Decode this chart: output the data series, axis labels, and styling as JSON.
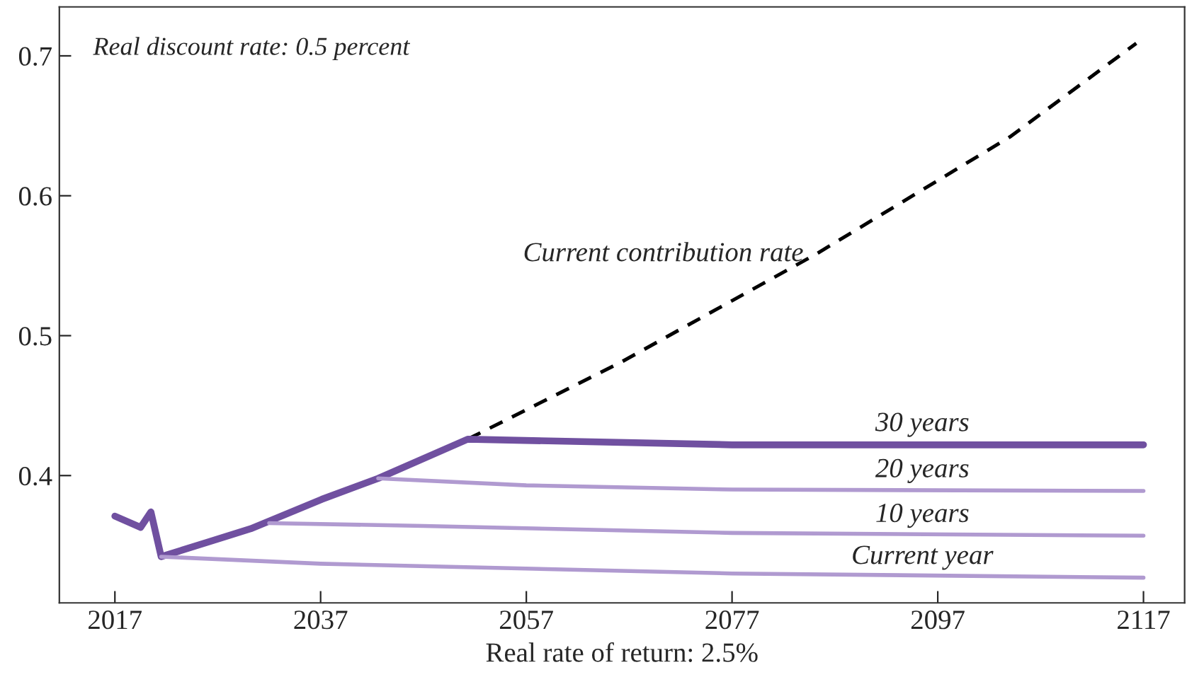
{
  "chart_data": {
    "type": "line",
    "xlabel": "Real rate of return: 2.5%",
    "annotations": [
      "Real discount rate: 0.5 percent"
    ],
    "xlim": [
      2011.6,
      2121
    ],
    "ylim": [
      0.309,
      0.735
    ],
    "xticks": [
      2017,
      2037,
      2057,
      2077,
      2097,
      2117
    ],
    "yticks": [
      0.4,
      0.5,
      0.6,
      0.7
    ],
    "grid": false,
    "legend": false,
    "series": [
      {
        "name": "Current contribution rate",
        "color": "#000000",
        "line_style": "dashed",
        "x": [
          2051.3,
          2066.2,
          2085.1,
          2104,
          2116.3
        ],
        "values": [
          0.426,
          0.481,
          0.558,
          0.642,
          0.709
        ]
      },
      {
        "name": "30 years",
        "color": "#7050a0",
        "x": [
          2017,
          2019.5,
          2020.5,
          2021.5,
          2030.2,
          2037.1,
          2042.6,
          2051.3,
          2077,
          2117
        ],
        "values": [
          0.371,
          0.363,
          0.374,
          0.342,
          0.362,
          0.383,
          0.398,
          0.426,
          0.422,
          0.422
        ]
      },
      {
        "name": "20 years",
        "color": "#b09ad0",
        "x": [
          2042.6,
          2057,
          2077,
          2117
        ],
        "values": [
          0.398,
          0.393,
          0.39,
          0.389
        ]
      },
      {
        "name": "10 years",
        "color": "#b09ad0",
        "x": [
          2032,
          2047,
          2077,
          2117
        ],
        "values": [
          0.366,
          0.364,
          0.359,
          0.357
        ]
      },
      {
        "name": "Current year",
        "color": "#b09ad0",
        "x": [
          2021.5,
          2037,
          2077,
          2117
        ],
        "values": [
          0.342,
          0.337,
          0.33,
          0.327
        ]
      }
    ]
  }
}
